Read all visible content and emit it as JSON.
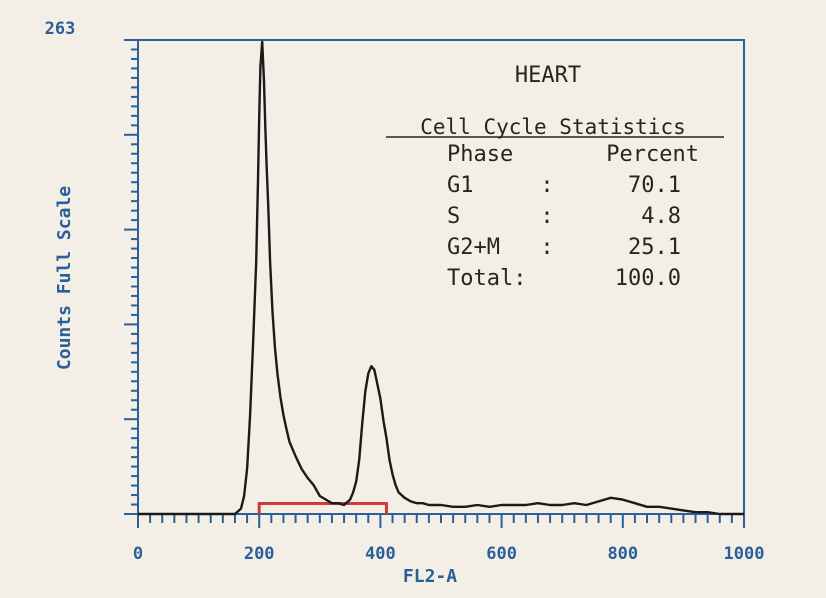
{
  "chart_data": {
    "type": "line",
    "title": "HEART",
    "xlabel": "FL2-A",
    "ylabel": "Counts Full Scale",
    "xlim": [
      0,
      1000
    ],
    "ylim": [
      0,
      263
    ],
    "x_ticks": [
      "0",
      "200",
      "400",
      "600",
      "800",
      "1000"
    ],
    "y_max_label": "263",
    "grid": false,
    "colors": {
      "axis": "#2a5f9a",
      "histogram": "#1a1a1a",
      "gate": "#d23a3a"
    },
    "gate_range": [
      200,
      410
    ],
    "series": [
      {
        "x": [
          0,
          160,
          170,
          175,
          180,
          185,
          190,
          195,
          198,
          200,
          202,
          205,
          208,
          210,
          212,
          215,
          218,
          222,
          226,
          230,
          235,
          240,
          245,
          250,
          260,
          270,
          280,
          290,
          300,
          310,
          320,
          330,
          340,
          350,
          355,
          360,
          365,
          370,
          375,
          380,
          385,
          390,
          395,
          400,
          405,
          410,
          415,
          420,
          425,
          430,
          440,
          450,
          460,
          470,
          480,
          500,
          520,
          540,
          560,
          580,
          600,
          620,
          640,
          660,
          680,
          700,
          720,
          740,
          760,
          780,
          800,
          820,
          840,
          860,
          880,
          900,
          920,
          940,
          960,
          980,
          1000
        ],
        "y": [
          0,
          0,
          3,
          10,
          25,
          55,
          95,
          140,
          185,
          220,
          248,
          262,
          240,
          215,
          195,
          170,
          140,
          112,
          92,
          78,
          65,
          55,
          47,
          40,
          32,
          25,
          20,
          16,
          10,
          8,
          6,
          6,
          5,
          8,
          12,
          18,
          30,
          50,
          68,
          78,
          82,
          80,
          72,
          64,
          52,
          42,
          30,
          22,
          16,
          12,
          9,
          7,
          6,
          6,
          5,
          5,
          4,
          4,
          5,
          4,
          5,
          5,
          5,
          6,
          5,
          5,
          6,
          5,
          7,
          9,
          8,
          6,
          4,
          4,
          3,
          2,
          1,
          1,
          0,
          0,
          0
        ]
      }
    ]
  },
  "stats": {
    "heading": "Cell Cycle Statistics",
    "col_phase": "Phase",
    "col_percent": "Percent",
    "rows": [
      {
        "phase": "G1",
        "sep": ":",
        "percent": "70.1"
      },
      {
        "phase": "S",
        "sep": ":",
        "percent": "4.8"
      },
      {
        "phase": "G2+M",
        "sep": ":",
        "percent": "25.1"
      },
      {
        "phase": "Total:",
        "sep": "",
        "percent": "100.0"
      }
    ]
  }
}
